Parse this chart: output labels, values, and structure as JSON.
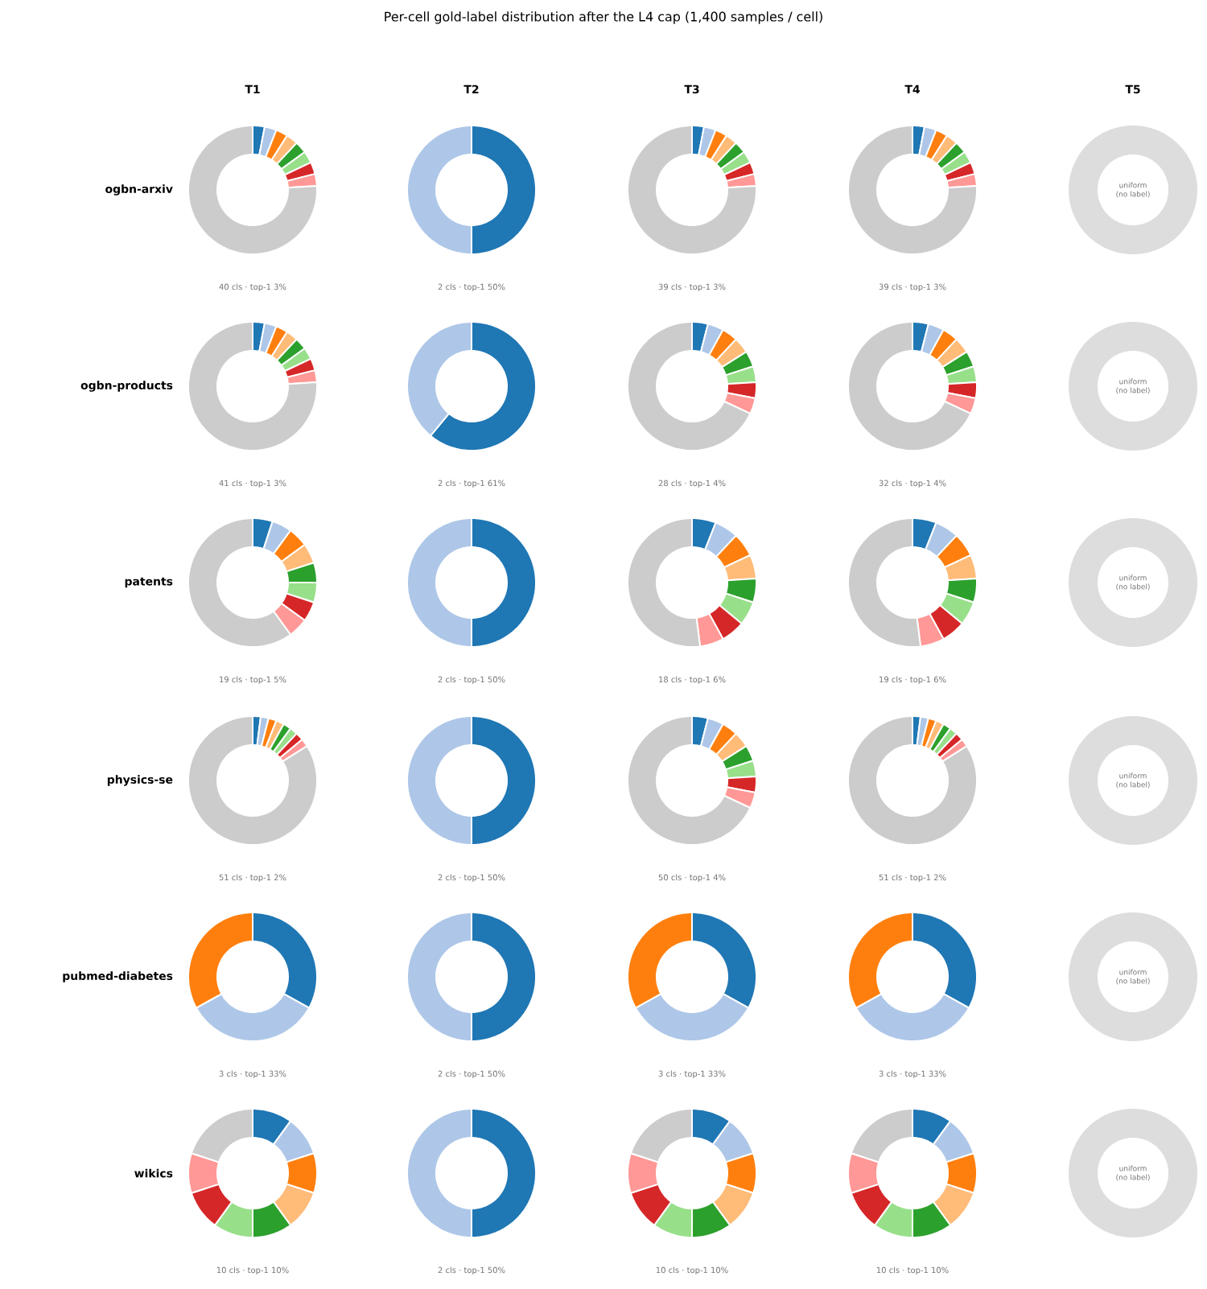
{
  "chart_data": [
    {
      "type": "other",
      "title": "Per-cell gold-label distribution after the L4 cap (1,400 samples / cell)"
    },
    {
      "type": "donut",
      "title": "T1",
      "ylabel": "ogbn-arxiv",
      "categories": [
        null,
        null,
        null,
        null,
        null,
        null,
        null,
        null,
        null
      ],
      "values": [
        3,
        3,
        3,
        3,
        3,
        3,
        3,
        3,
        76
      ],
      "colors": [
        "#1f77b4",
        "#aec7e8",
        "#ff7f0e",
        "#ffbb78",
        "#2ca02c",
        "#98df8a",
        "#d62728",
        "#ff9896",
        "#cccccc"
      ],
      "annotations": [
        "40 cls · top-1 3%"
      ]
    },
    {
      "type": "donut",
      "title": "T2",
      "categories": [
        null,
        null
      ],
      "values": [
        50,
        50
      ],
      "colors": [
        "#1f77b4",
        "#aec7e8"
      ],
      "annotations": [
        "2 cls · top-1 50%"
      ]
    },
    {
      "type": "donut",
      "title": "T3",
      "categories": [
        null,
        null,
        null,
        null,
        null,
        null,
        null,
        null,
        null
      ],
      "values": [
        3,
        3,
        3,
        3,
        3,
        3,
        3,
        3,
        76
      ],
      "colors": [
        "#1f77b4",
        "#aec7e8",
        "#ff7f0e",
        "#ffbb78",
        "#2ca02c",
        "#98df8a",
        "#d62728",
        "#ff9896",
        "#cccccc"
      ],
      "annotations": [
        "39 cls · top-1 3%"
      ]
    },
    {
      "type": "donut",
      "title": "T4",
      "categories": [
        null,
        null,
        null,
        null,
        null,
        null,
        null,
        null,
        null
      ],
      "values": [
        3,
        3,
        3,
        3,
        3,
        3,
        3,
        3,
        76
      ],
      "colors": [
        "#1f77b4",
        "#aec7e8",
        "#ff7f0e",
        "#ffbb78",
        "#2ca02c",
        "#98df8a",
        "#d62728",
        "#ff9896",
        "#cccccc"
      ],
      "annotations": [
        "39 cls · top-1 3%"
      ]
    },
    {
      "type": "donut",
      "title": "T5",
      "categories": [
        null
      ],
      "values": [
        100
      ],
      "colors": [
        "#dddddd"
      ],
      "annotations": [
        "uniform (no label)"
      ]
    },
    {
      "type": "donut",
      "ylabel": "ogbn-products",
      "categories": [
        null,
        null,
        null,
        null,
        null,
        null,
        null,
        null,
        null
      ],
      "values": [
        3,
        3,
        3,
        3,
        3,
        3,
        3,
        3,
        76
      ],
      "colors": [
        "#1f77b4",
        "#aec7e8",
        "#ff7f0e",
        "#ffbb78",
        "#2ca02c",
        "#98df8a",
        "#d62728",
        "#ff9896",
        "#cccccc"
      ],
      "annotations": [
        "41 cls · top-1 3%"
      ]
    },
    {
      "type": "donut",
      "categories": [
        null,
        null
      ],
      "values": [
        61,
        39
      ],
      "colors": [
        "#1f77b4",
        "#aec7e8"
      ],
      "annotations": [
        "2 cls · top-1 61%"
      ]
    },
    {
      "type": "donut",
      "categories": [
        null,
        null,
        null,
        null,
        null,
        null,
        null,
        null,
        null
      ],
      "values": [
        4,
        4,
        4,
        4,
        4,
        4,
        4,
        4,
        68
      ],
      "colors": [
        "#1f77b4",
        "#aec7e8",
        "#ff7f0e",
        "#ffbb78",
        "#2ca02c",
        "#98df8a",
        "#d62728",
        "#ff9896",
        "#cccccc"
      ],
      "annotations": [
        "28 cls · top-1 4%"
      ]
    },
    {
      "type": "donut",
      "categories": [
        null,
        null,
        null,
        null,
        null,
        null,
        null,
        null,
        null
      ],
      "values": [
        4,
        4,
        4,
        4,
        4,
        4,
        4,
        4,
        68
      ],
      "colors": [
        "#1f77b4",
        "#aec7e8",
        "#ff7f0e",
        "#ffbb78",
        "#2ca02c",
        "#98df8a",
        "#d62728",
        "#ff9896",
        "#cccccc"
      ],
      "annotations": [
        "32 cls · top-1 4%"
      ]
    },
    {
      "type": "donut",
      "categories": [
        null
      ],
      "values": [
        100
      ],
      "colors": [
        "#dddddd"
      ],
      "annotations": [
        "uniform (no label)"
      ]
    },
    {
      "type": "donut",
      "ylabel": "patents",
      "categories": [
        null,
        null,
        null,
        null,
        null,
        null,
        null,
        null,
        null
      ],
      "values": [
        5,
        5,
        5,
        5,
        5,
        5,
        5,
        5,
        60
      ],
      "colors": [
        "#1f77b4",
        "#aec7e8",
        "#ff7f0e",
        "#ffbb78",
        "#2ca02c",
        "#98df8a",
        "#d62728",
        "#ff9896",
        "#cccccc"
      ],
      "annotations": [
        "19 cls · top-1 5%"
      ]
    },
    {
      "type": "donut",
      "categories": [
        null,
        null
      ],
      "values": [
        50,
        50
      ],
      "colors": [
        "#1f77b4",
        "#aec7e8"
      ],
      "annotations": [
        "2 cls · top-1 50%"
      ]
    },
    {
      "type": "donut",
      "categories": [
        null,
        null,
        null,
        null,
        null,
        null,
        null,
        null,
        null
      ],
      "values": [
        6,
        6,
        6,
        6,
        6,
        6,
        6,
        6,
        52
      ],
      "colors": [
        "#1f77b4",
        "#aec7e8",
        "#ff7f0e",
        "#ffbb78",
        "#2ca02c",
        "#98df8a",
        "#d62728",
        "#ff9896",
        "#cccccc"
      ],
      "annotations": [
        "18 cls · top-1 6%"
      ]
    },
    {
      "type": "donut",
      "categories": [
        null,
        null,
        null,
        null,
        null,
        null,
        null,
        null,
        null
      ],
      "values": [
        6,
        6,
        6,
        6,
        6,
        6,
        6,
        6,
        52
      ],
      "colors": [
        "#1f77b4",
        "#aec7e8",
        "#ff7f0e",
        "#ffbb78",
        "#2ca02c",
        "#98df8a",
        "#d62728",
        "#ff9896",
        "#cccccc"
      ],
      "annotations": [
        "19 cls · top-1 6%"
      ]
    },
    {
      "type": "donut",
      "categories": [
        null
      ],
      "values": [
        100
      ],
      "colors": [
        "#dddddd"
      ],
      "annotations": [
        "uniform (no label)"
      ]
    },
    {
      "type": "donut",
      "ylabel": "physics-se",
      "categories": [
        null,
        null,
        null,
        null,
        null,
        null,
        null,
        null,
        null
      ],
      "values": [
        2,
        2,
        2,
        2,
        2,
        2,
        2,
        2,
        84
      ],
      "colors": [
        "#1f77b4",
        "#aec7e8",
        "#ff7f0e",
        "#ffbb78",
        "#2ca02c",
        "#98df8a",
        "#d62728",
        "#ff9896",
        "#cccccc"
      ],
      "annotations": [
        "51 cls · top-1 2%"
      ]
    },
    {
      "type": "donut",
      "categories": [
        null,
        null
      ],
      "values": [
        50,
        50
      ],
      "colors": [
        "#1f77b4",
        "#aec7e8"
      ],
      "annotations": [
        "2 cls · top-1 50%"
      ]
    },
    {
      "type": "donut",
      "categories": [
        null,
        null,
        null,
        null,
        null,
        null,
        null,
        null,
        null
      ],
      "values": [
        4,
        4,
        4,
        4,
        4,
        4,
        4,
        4,
        68
      ],
      "colors": [
        "#1f77b4",
        "#aec7e8",
        "#ff7f0e",
        "#ffbb78",
        "#2ca02c",
        "#98df8a",
        "#d62728",
        "#ff9896",
        "#cccccc"
      ],
      "annotations": [
        "50 cls · top-1 4%"
      ]
    },
    {
      "type": "donut",
      "categories": [
        null,
        null,
        null,
        null,
        null,
        null,
        null,
        null,
        null
      ],
      "values": [
        2,
        2,
        2,
        2,
        2,
        2,
        2,
        2,
        84
      ],
      "colors": [
        "#1f77b4",
        "#aec7e8",
        "#ff7f0e",
        "#ffbb78",
        "#2ca02c",
        "#98df8a",
        "#d62728",
        "#ff9896",
        "#cccccc"
      ],
      "annotations": [
        "51 cls · top-1 2%"
      ]
    },
    {
      "type": "donut",
      "categories": [
        null
      ],
      "values": [
        100
      ],
      "colors": [
        "#dddddd"
      ],
      "annotations": [
        "uniform (no label)"
      ]
    },
    {
      "type": "donut",
      "ylabel": "pubmed-diabetes",
      "categories": [
        null,
        null,
        null
      ],
      "values": [
        33,
        34,
        33
      ],
      "colors": [
        "#1f77b4",
        "#aec7e8",
        "#ff7f0e"
      ],
      "annotations": [
        "3 cls · top-1 33%"
      ]
    },
    {
      "type": "donut",
      "categories": [
        null,
        null
      ],
      "values": [
        50,
        50
      ],
      "colors": [
        "#1f77b4",
        "#aec7e8"
      ],
      "annotations": [
        "2 cls · top-1 50%"
      ]
    },
    {
      "type": "donut",
      "categories": [
        null,
        null,
        null
      ],
      "values": [
        33,
        34,
        33
      ],
      "colors": [
        "#1f77b4",
        "#aec7e8",
        "#ff7f0e"
      ],
      "annotations": [
        "3 cls · top-1 33%"
      ]
    },
    {
      "type": "donut",
      "categories": [
        null,
        null,
        null
      ],
      "values": [
        33,
        34,
        33
      ],
      "colors": [
        "#1f77b4",
        "#aec7e8",
        "#ff7f0e"
      ],
      "annotations": [
        "3 cls · top-1 33%"
      ]
    },
    {
      "type": "donut",
      "categories": [
        null
      ],
      "values": [
        100
      ],
      "colors": [
        "#dddddd"
      ],
      "annotations": [
        "uniform (no label)"
      ]
    },
    {
      "type": "donut",
      "ylabel": "wikics",
      "categories": [
        null,
        null,
        null,
        null,
        null,
        null,
        null,
        null,
        null
      ],
      "values": [
        10,
        10,
        10,
        10,
        10,
        10,
        10,
        10,
        20
      ],
      "colors": [
        "#1f77b4",
        "#aec7e8",
        "#ff7f0e",
        "#ffbb78",
        "#2ca02c",
        "#98df8a",
        "#d62728",
        "#ff9896",
        "#cccccc"
      ],
      "annotations": [
        "10 cls · top-1 10%"
      ]
    },
    {
      "type": "donut",
      "categories": [
        null,
        null
      ],
      "values": [
        50,
        50
      ],
      "colors": [
        "#1f77b4",
        "#aec7e8"
      ],
      "annotations": [
        "2 cls · top-1 50%"
      ]
    },
    {
      "type": "donut",
      "categories": [
        null,
        null,
        null,
        null,
        null,
        null,
        null,
        null,
        null
      ],
      "values": [
        10,
        10,
        10,
        10,
        10,
        10,
        10,
        10,
        20
      ],
      "colors": [
        "#1f77b4",
        "#aec7e8",
        "#ff7f0e",
        "#ffbb78",
        "#2ca02c",
        "#98df8a",
        "#d62728",
        "#ff9896",
        "#cccccc"
      ],
      "annotations": [
        "10 cls · top-1 10%"
      ]
    },
    {
      "type": "donut",
      "categories": [
        null,
        null,
        null,
        null,
        null,
        null,
        null,
        null,
        null
      ],
      "values": [
        10,
        10,
        10,
        10,
        10,
        10,
        10,
        10,
        20
      ],
      "colors": [
        "#1f77b4",
        "#aec7e8",
        "#ff7f0e",
        "#ffbb78",
        "#2ca02c",
        "#98df8a",
        "#d62728",
        "#ff9896",
        "#cccccc"
      ],
      "annotations": [
        "10 cls · top-1 10%"
      ]
    },
    {
      "type": "donut",
      "categories": [
        null
      ],
      "values": [
        100
      ],
      "colors": [
        "#dddddd"
      ],
      "annotations": [
        "uniform (no label)"
      ]
    }
  ]
}
